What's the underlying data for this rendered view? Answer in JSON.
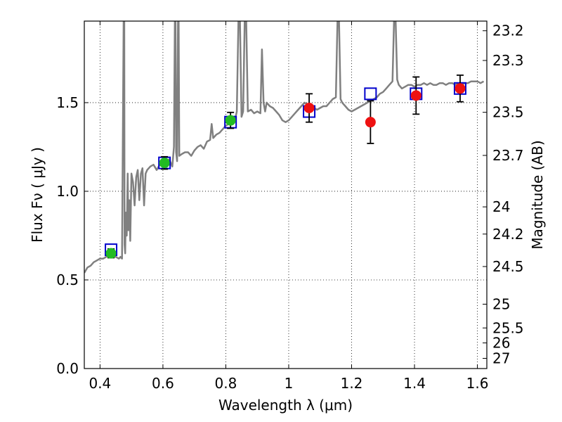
{
  "chart_data": {
    "type": "scatter",
    "title": "",
    "xlabel": "Wavelength  λ (μm)",
    "ylabel_left": "Flux  Fν ( μJy )",
    "ylabel_right": "Magnitude (AB)",
    "xlim": [
      0.35,
      1.63
    ],
    "ylim": [
      0.0,
      1.96
    ],
    "x_ticks": [
      0.4,
      0.6,
      0.8,
      1.0,
      1.2,
      1.4,
      1.6
    ],
    "x_tick_labels": [
      "0.4",
      "0.6",
      "0.8",
      "1",
      "1.2",
      "1.4",
      "1.6"
    ],
    "y_ticks": [
      0.0,
      0.5,
      1.0,
      1.5
    ],
    "y_tick_labels": [
      "0.0",
      "0.5",
      "1.0",
      "1.5"
    ],
    "right_ticks": [
      {
        "value": 23.2,
        "label": "23.2"
      },
      {
        "value": 23.3,
        "label": "23.3"
      },
      {
        "value": 23.5,
        "label": "23.5"
      },
      {
        "value": 23.7,
        "label": "23.7"
      },
      {
        "value": 24.0,
        "label": "24"
      },
      {
        "value": 24.2,
        "label": "24.2"
      },
      {
        "value": 24.5,
        "label": "24.5"
      },
      {
        "value": 25.0,
        "label": "25"
      },
      {
        "value": 25.5,
        "label": "25.5"
      },
      {
        "value": 26.0,
        "label": "26"
      },
      {
        "value": 27.0,
        "label": "27"
      }
    ],
    "grid": true,
    "series": [
      {
        "kind": "line",
        "color": "#808080",
        "points": [
          [
            0.35,
            0.54
          ],
          [
            0.36,
            0.57
          ],
          [
            0.37,
            0.58
          ],
          [
            0.38,
            0.6
          ],
          [
            0.39,
            0.61
          ],
          [
            0.4,
            0.62
          ],
          [
            0.41,
            0.62
          ],
          [
            0.42,
            0.63
          ],
          [
            0.43,
            0.64
          ],
          [
            0.44,
            0.63
          ],
          [
            0.45,
            0.63
          ],
          [
            0.46,
            0.62
          ],
          [
            0.465,
            0.63
          ],
          [
            0.47,
            0.62
          ],
          [
            0.475,
            1.96
          ],
          [
            0.477,
            1.96
          ],
          [
            0.478,
            0.7
          ],
          [
            0.48,
            0.65
          ],
          [
            0.482,
            0.88
          ],
          [
            0.485,
            0.75
          ],
          [
            0.488,
            1.1
          ],
          [
            0.49,
            0.78
          ],
          [
            0.493,
            0.95
          ],
          [
            0.496,
            0.72
          ],
          [
            0.5,
            1.1
          ],
          [
            0.505,
            1.05
          ],
          [
            0.51,
            0.92
          ],
          [
            0.515,
            1.08
          ],
          [
            0.52,
            1.12
          ],
          [
            0.525,
            0.95
          ],
          [
            0.53,
            1.1
          ],
          [
            0.535,
            1.13
          ],
          [
            0.54,
            0.92
          ],
          [
            0.545,
            1.1
          ],
          [
            0.55,
            1.12
          ],
          [
            0.56,
            1.14
          ],
          [
            0.57,
            1.15
          ],
          [
            0.58,
            1.12
          ],
          [
            0.59,
            1.15
          ],
          [
            0.6,
            1.16
          ],
          [
            0.61,
            1.17
          ],
          [
            0.62,
            1.18
          ],
          [
            0.63,
            1.14
          ],
          [
            0.635,
            1.25
          ],
          [
            0.638,
            1.96
          ],
          [
            0.64,
            1.96
          ],
          [
            0.642,
            1.22
          ],
          [
            0.645,
            1.17
          ],
          [
            0.648,
            1.96
          ],
          [
            0.65,
            1.96
          ],
          [
            0.652,
            1.2
          ],
          [
            0.66,
            1.21
          ],
          [
            0.67,
            1.22
          ],
          [
            0.68,
            1.22
          ],
          [
            0.69,
            1.2
          ],
          [
            0.7,
            1.23
          ],
          [
            0.71,
            1.25
          ],
          [
            0.72,
            1.26
          ],
          [
            0.73,
            1.24
          ],
          [
            0.74,
            1.28
          ],
          [
            0.75,
            1.29
          ],
          [
            0.755,
            1.38
          ],
          [
            0.76,
            1.3
          ],
          [
            0.77,
            1.32
          ],
          [
            0.78,
            1.33
          ],
          [
            0.79,
            1.35
          ],
          [
            0.8,
            1.37
          ],
          [
            0.81,
            1.38
          ],
          [
            0.82,
            1.4
          ],
          [
            0.83,
            1.41
          ],
          [
            0.835,
            1.45
          ],
          [
            0.84,
            1.96
          ],
          [
            0.845,
            1.96
          ],
          [
            0.85,
            1.42
          ],
          [
            0.855,
            1.45
          ],
          [
            0.86,
            1.96
          ],
          [
            0.865,
            1.96
          ],
          [
            0.87,
            1.45
          ],
          [
            0.88,
            1.46
          ],
          [
            0.89,
            1.44
          ],
          [
            0.9,
            1.45
          ],
          [
            0.91,
            1.44
          ],
          [
            0.915,
            1.8
          ],
          [
            0.92,
            1.5
          ],
          [
            0.925,
            1.45
          ],
          [
            0.93,
            1.5
          ],
          [
            0.94,
            1.48
          ],
          [
            0.95,
            1.47
          ],
          [
            0.96,
            1.45
          ],
          [
            0.97,
            1.43
          ],
          [
            0.98,
            1.4
          ],
          [
            0.99,
            1.39
          ],
          [
            1.0,
            1.4
          ],
          [
            1.01,
            1.42
          ],
          [
            1.02,
            1.44
          ],
          [
            1.03,
            1.46
          ],
          [
            1.04,
            1.48
          ],
          [
            1.05,
            1.5
          ],
          [
            1.06,
            1.49
          ],
          [
            1.07,
            1.48
          ],
          [
            1.08,
            1.47
          ],
          [
            1.09,
            1.46
          ],
          [
            1.1,
            1.47
          ],
          [
            1.11,
            1.48
          ],
          [
            1.12,
            1.48
          ],
          [
            1.13,
            1.5
          ],
          [
            1.14,
            1.52
          ],
          [
            1.15,
            1.53
          ],
          [
            1.155,
            1.96
          ],
          [
            1.16,
            1.96
          ],
          [
            1.165,
            1.52
          ],
          [
            1.17,
            1.5
          ],
          [
            1.18,
            1.48
          ],
          [
            1.19,
            1.46
          ],
          [
            1.2,
            1.45
          ],
          [
            1.21,
            1.46
          ],
          [
            1.22,
            1.47
          ],
          [
            1.23,
            1.48
          ],
          [
            1.24,
            1.49
          ],
          [
            1.25,
            1.5
          ],
          [
            1.26,
            1.51
          ],
          [
            1.27,
            1.52
          ],
          [
            1.28,
            1.53
          ],
          [
            1.29,
            1.55
          ],
          [
            1.3,
            1.56
          ],
          [
            1.31,
            1.58
          ],
          [
            1.32,
            1.6
          ],
          [
            1.33,
            1.62
          ],
          [
            1.335,
            1.96
          ],
          [
            1.34,
            1.96
          ],
          [
            1.345,
            1.63
          ],
          [
            1.35,
            1.6
          ],
          [
            1.36,
            1.58
          ],
          [
            1.37,
            1.59
          ],
          [
            1.38,
            1.6
          ],
          [
            1.39,
            1.6
          ],
          [
            1.4,
            1.59
          ],
          [
            1.41,
            1.6
          ],
          [
            1.42,
            1.6
          ],
          [
            1.43,
            1.61
          ],
          [
            1.44,
            1.6
          ],
          [
            1.45,
            1.61
          ],
          [
            1.46,
            1.6
          ],
          [
            1.47,
            1.6
          ],
          [
            1.48,
            1.61
          ],
          [
            1.49,
            1.61
          ],
          [
            1.5,
            1.6
          ],
          [
            1.51,
            1.61
          ],
          [
            1.52,
            1.61
          ],
          [
            1.53,
            1.6
          ],
          [
            1.54,
            1.61
          ],
          [
            1.55,
            1.6
          ],
          [
            1.56,
            1.61
          ],
          [
            1.57,
            1.61
          ],
          [
            1.58,
            1.62
          ],
          [
            1.59,
            1.62
          ],
          [
            1.6,
            1.62
          ],
          [
            1.61,
            1.61
          ],
          [
            1.62,
            1.62
          ]
        ]
      },
      {
        "kind": "squares",
        "color": "#0000cc",
        "points": [
          [
            0.435,
            0.67
          ],
          [
            0.605,
            1.16
          ],
          [
            0.815,
            1.39
          ],
          [
            1.065,
            1.45
          ],
          [
            1.26,
            1.55
          ],
          [
            1.405,
            1.55
          ],
          [
            1.545,
            1.58
          ]
        ]
      },
      {
        "kind": "points",
        "color": "#22bb22",
        "points": [
          {
            "x": 0.435,
            "y": 0.65,
            "err": 0.025
          },
          {
            "x": 0.605,
            "y": 1.16,
            "err": 0.035
          },
          {
            "x": 0.815,
            "y": 1.4,
            "err": 0.045
          }
        ]
      },
      {
        "kind": "points",
        "color": "#ee1111",
        "points": [
          {
            "x": 1.065,
            "y": 1.47,
            "err": 0.08
          },
          {
            "x": 1.26,
            "y": 1.39,
            "err": 0.12
          },
          {
            "x": 1.405,
            "y": 1.54,
            "err": 0.105
          },
          {
            "x": 1.545,
            "y": 1.58,
            "err": 0.075
          }
        ]
      }
    ]
  }
}
